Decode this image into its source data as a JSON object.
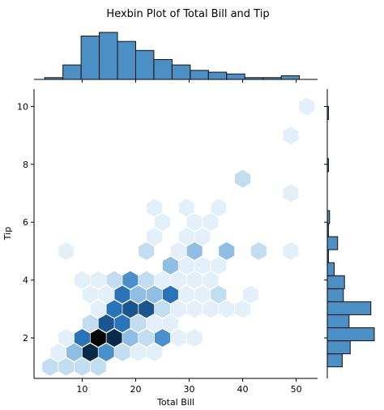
{
  "chart_data": {
    "type": "hexbin",
    "title": "Hexbin Plot of Total Bill and Tip",
    "xlabel": "Total Bill",
    "ylabel": "Tip",
    "xlim": [
      1,
      54
    ],
    "ylim": [
      0.6,
      10.6
    ],
    "xticks": [
      10,
      20,
      30,
      40,
      50
    ],
    "yticks": [
      2,
      4,
      6,
      8,
      10
    ],
    "grid": false,
    "colormap": [
      "#e3f0fa",
      "#c2dcf0",
      "#8fbde3",
      "#4a90cd",
      "#2a73b8",
      "#1a5590",
      "#0a2a4a",
      "#050505"
    ],
    "hexbins": [
      {
        "x": 4.0,
        "y": 1.0,
        "count": 2
      },
      {
        "x": 7.0,
        "y": 1.0,
        "count": 2
      },
      {
        "x": 10.0,
        "y": 1.0,
        "count": 2
      },
      {
        "x": 13.0,
        "y": 1.0,
        "count": 2
      },
      {
        "x": 5.5,
        "y": 1.5,
        "count": 1
      },
      {
        "x": 8.5,
        "y": 1.5,
        "count": 3
      },
      {
        "x": 11.5,
        "y": 1.5,
        "count": 14
      },
      {
        "x": 14.5,
        "y": 1.5,
        "count": 4
      },
      {
        "x": 17.5,
        "y": 1.5,
        "count": 2
      },
      {
        "x": 20.5,
        "y": 1.5,
        "count": 1
      },
      {
        "x": 23.5,
        "y": 1.5,
        "count": 1
      },
      {
        "x": 7.0,
        "y": 2.0,
        "count": 1
      },
      {
        "x": 10.0,
        "y": 2.0,
        "count": 6
      },
      {
        "x": 13.0,
        "y": 2.0,
        "count": 16
      },
      {
        "x": 16.0,
        "y": 2.0,
        "count": 14
      },
      {
        "x": 19.0,
        "y": 2.0,
        "count": 3
      },
      {
        "x": 22.0,
        "y": 2.0,
        "count": 2
      },
      {
        "x": 25.0,
        "y": 2.0,
        "count": 4
      },
      {
        "x": 28.0,
        "y": 2.0,
        "count": 1
      },
      {
        "x": 31.0,
        "y": 2.0,
        "count": 1
      },
      {
        "x": 11.5,
        "y": 2.5,
        "count": 2
      },
      {
        "x": 14.5,
        "y": 2.5,
        "count": 8
      },
      {
        "x": 17.5,
        "y": 2.5,
        "count": 6
      },
      {
        "x": 20.5,
        "y": 2.5,
        "count": 2
      },
      {
        "x": 23.5,
        "y": 2.5,
        "count": 1
      },
      {
        "x": 26.5,
        "y": 2.5,
        "count": 1
      },
      {
        "x": 13.0,
        "y": 3.0,
        "count": 1
      },
      {
        "x": 16.0,
        "y": 3.0,
        "count": 7
      },
      {
        "x": 19.0,
        "y": 3.0,
        "count": 10
      },
      {
        "x": 22.0,
        "y": 3.0,
        "count": 8
      },
      {
        "x": 25.0,
        "y": 3.0,
        "count": 2
      },
      {
        "x": 28.0,
        "y": 3.0,
        "count": 1
      },
      {
        "x": 31.0,
        "y": 3.0,
        "count": 1
      },
      {
        "x": 34.0,
        "y": 3.0,
        "count": 1
      },
      {
        "x": 37.0,
        "y": 3.0,
        "count": 1
      },
      {
        "x": 40.0,
        "y": 3.0,
        "count": 1
      },
      {
        "x": 11.5,
        "y": 3.5,
        "count": 1
      },
      {
        "x": 14.5,
        "y": 3.5,
        "count": 1
      },
      {
        "x": 17.5,
        "y": 3.5,
        "count": 5
      },
      {
        "x": 20.5,
        "y": 3.5,
        "count": 3
      },
      {
        "x": 23.5,
        "y": 3.5,
        "count": 3
      },
      {
        "x": 26.5,
        "y": 3.5,
        "count": 5
      },
      {
        "x": 29.5,
        "y": 3.5,
        "count": 1
      },
      {
        "x": 32.5,
        "y": 3.5,
        "count": 1
      },
      {
        "x": 35.5,
        "y": 3.5,
        "count": 2
      },
      {
        "x": 41.5,
        "y": 3.5,
        "count": 1
      },
      {
        "x": 10.0,
        "y": 4.0,
        "count": 1
      },
      {
        "x": 13.0,
        "y": 4.0,
        "count": 1
      },
      {
        "x": 16.0,
        "y": 4.0,
        "count": 2
      },
      {
        "x": 19.0,
        "y": 4.0,
        "count": 4
      },
      {
        "x": 22.0,
        "y": 4.0,
        "count": 2
      },
      {
        "x": 25.0,
        "y": 4.0,
        "count": 1
      },
      {
        "x": 28.0,
        "y": 4.0,
        "count": 1
      },
      {
        "x": 31.0,
        "y": 4.0,
        "count": 1
      },
      {
        "x": 34.0,
        "y": 4.0,
        "count": 1
      },
      {
        "x": 26.5,
        "y": 4.5,
        "count": 3
      },
      {
        "x": 29.5,
        "y": 4.5,
        "count": 1
      },
      {
        "x": 32.5,
        "y": 4.5,
        "count": 1
      },
      {
        "x": 35.5,
        "y": 4.5,
        "count": 1
      },
      {
        "x": 7.0,
        "y": 5.0,
        "count": 1
      },
      {
        "x": 22.0,
        "y": 5.0,
        "count": 2
      },
      {
        "x": 28.0,
        "y": 5.0,
        "count": 1
      },
      {
        "x": 31.0,
        "y": 5.0,
        "count": 3
      },
      {
        "x": 37.0,
        "y": 5.0,
        "count": 3
      },
      {
        "x": 43.0,
        "y": 5.0,
        "count": 2
      },
      {
        "x": 49.0,
        "y": 5.0,
        "count": 1
      },
      {
        "x": 23.5,
        "y": 5.5,
        "count": 1
      },
      {
        "x": 29.5,
        "y": 5.5,
        "count": 1
      },
      {
        "x": 32.5,
        "y": 5.5,
        "count": 1
      },
      {
        "x": 25.0,
        "y": 6.0,
        "count": 1
      },
      {
        "x": 31.0,
        "y": 6.0,
        "count": 1
      },
      {
        "x": 34.0,
        "y": 6.0,
        "count": 1
      },
      {
        "x": 23.5,
        "y": 6.5,
        "count": 1
      },
      {
        "x": 29.5,
        "y": 6.5,
        "count": 1
      },
      {
        "x": 35.5,
        "y": 6.5,
        "count": 1
      },
      {
        "x": 49.0,
        "y": 7.0,
        "count": 1
      },
      {
        "x": 40.0,
        "y": 7.5,
        "count": 2
      },
      {
        "x": 49.0,
        "y": 9.0,
        "count": 1
      },
      {
        "x": 52.0,
        "y": 10.0,
        "count": 1
      }
    ],
    "marginal_x": {
      "bin_edges": [
        3,
        6.4,
        9.8,
        13.2,
        16.6,
        20,
        23.4,
        26.8,
        30.2,
        33.6,
        37,
        40.4,
        43.8,
        47.2,
        50.6
      ],
      "counts": [
        1,
        8,
        24,
        26,
        21,
        16,
        11,
        8,
        5,
        4,
        3,
        1,
        1,
        2
      ]
    },
    "marginal_y": {
      "bin_edges": [
        1,
        1.45,
        1.9,
        2.35,
        2.8,
        3.25,
        3.7,
        4.15,
        4.6,
        5.05,
        5.5,
        5.95,
        6.4,
        6.85,
        7.3,
        7.75,
        8.2,
        8.65,
        9.1,
        9.55,
        10
      ],
      "counts": [
        13,
        20,
        41,
        19,
        38,
        14,
        15,
        6,
        1,
        9,
        1,
        2,
        0,
        0,
        0,
        1,
        0,
        0,
        0,
        1
      ]
    }
  }
}
